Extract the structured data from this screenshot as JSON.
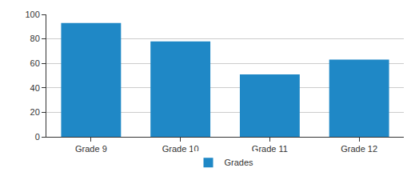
{
  "chart_data": {
    "type": "bar",
    "categories": [
      "Grade 9",
      "Grade 10",
      "Grade 11",
      "Grade 12"
    ],
    "series": [
      {
        "name": "Grades",
        "color": "#1f88c6",
        "values": [
          93,
          78,
          51,
          63
        ]
      }
    ],
    "ylim": [
      0,
      100
    ],
    "yticks": [
      0,
      20,
      40,
      60,
      80,
      100
    ],
    "grid": true,
    "legend": "bottom"
  }
}
